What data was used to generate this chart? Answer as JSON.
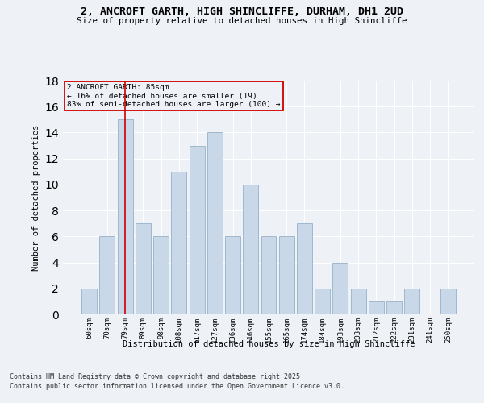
{
  "title1": "2, ANCROFT GARTH, HIGH SHINCLIFFE, DURHAM, DH1 2UD",
  "title2": "Size of property relative to detached houses in High Shincliffe",
  "xlabel": "Distribution of detached houses by size in High Shincliffe",
  "ylabel": "Number of detached properties",
  "annotation_line1": "2 ANCROFT GARTH: 85sqm",
  "annotation_line2": "← 16% of detached houses are smaller (19)",
  "annotation_line3": "83% of semi-detached houses are larger (100) →",
  "categories": [
    "60sqm",
    "70sqm",
    "79sqm",
    "89sqm",
    "98sqm",
    "108sqm",
    "117sqm",
    "127sqm",
    "136sqm",
    "146sqm",
    "155sqm",
    "165sqm",
    "174sqm",
    "184sqm",
    "193sqm",
    "203sqm",
    "212sqm",
    "222sqm",
    "231sqm",
    "241sqm",
    "250sqm"
  ],
  "values": [
    2,
    6,
    15,
    7,
    6,
    11,
    13,
    14,
    6,
    10,
    6,
    6,
    7,
    2,
    4,
    2,
    1,
    1,
    2,
    0,
    2
  ],
  "bar_color": "#c8d8e8",
  "bar_edge_color": "#a0b8cc",
  "highlight_line_color": "#cc0000",
  "highlight_line_index": 2,
  "ylim": [
    0,
    18
  ],
  "yticks": [
    0,
    2,
    4,
    6,
    8,
    10,
    12,
    14,
    16,
    18
  ],
  "background_color": "#eef2f7",
  "grid_color": "#ffffff",
  "footnote1": "Contains HM Land Registry data © Crown copyright and database right 2025.",
  "footnote2": "Contains public sector information licensed under the Open Government Licence v3.0."
}
